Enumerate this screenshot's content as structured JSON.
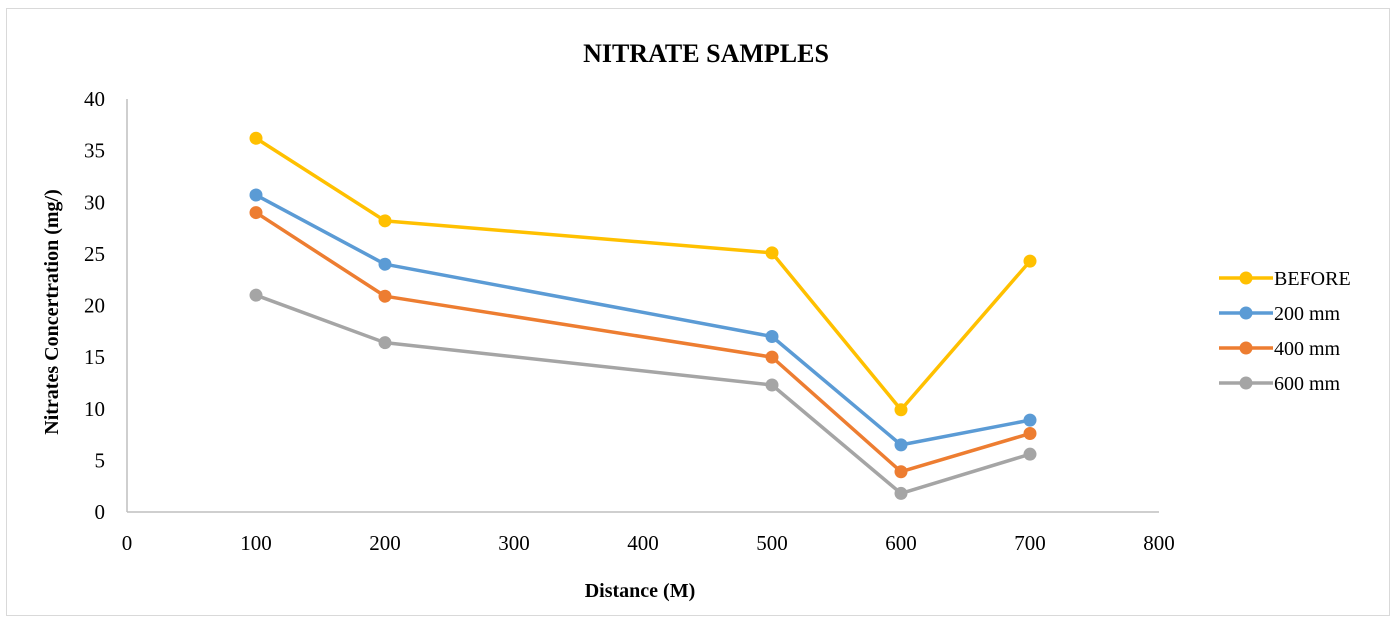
{
  "chart_data": {
    "type": "line",
    "title": "NITRATE SAMPLES",
    "xlabel": "Distance (M)",
    "ylabel": "Nitrates Concertration (mg/)",
    "xlim": [
      0,
      800
    ],
    "ylim": [
      0,
      40
    ],
    "x_ticks": [
      0,
      100,
      200,
      300,
      400,
      500,
      600,
      700,
      800
    ],
    "y_ticks": [
      0,
      5,
      10,
      15,
      20,
      25,
      30,
      35,
      40
    ],
    "grid": false,
    "legend_position": "right",
    "x": [
      100,
      200,
      500,
      600,
      700
    ],
    "series": [
      {
        "name": "BEFORE",
        "color": "#FFC000",
        "values": [
          36.2,
          28.2,
          25.1,
          9.9,
          24.3
        ]
      },
      {
        "name": "200 mm",
        "color": "#5B9BD5",
        "values": [
          30.7,
          24.0,
          17.0,
          6.5,
          8.9
        ]
      },
      {
        "name": "400 mm",
        "color": "#ED7D31",
        "values": [
          29.0,
          20.9,
          15.0,
          3.9,
          7.6
        ]
      },
      {
        "name": "600 mm",
        "color": "#A5A5A5",
        "values": [
          21.0,
          16.4,
          12.3,
          1.8,
          5.6
        ]
      }
    ]
  }
}
